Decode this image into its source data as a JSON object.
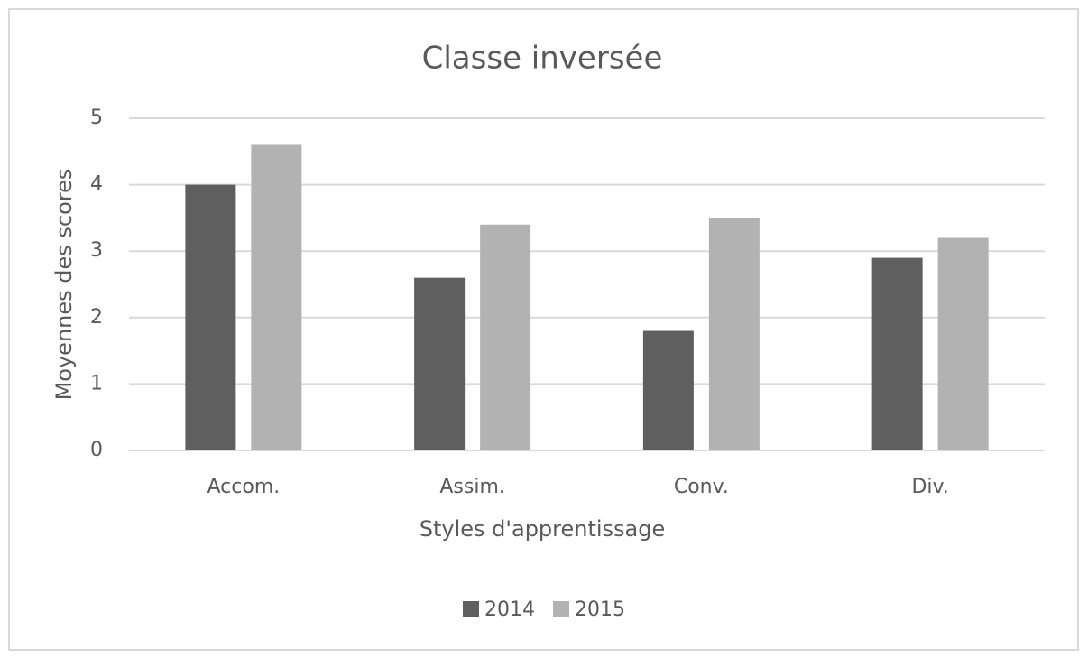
{
  "chart_data": {
    "type": "bar",
    "title": "Classe inversée",
    "x_label": "Styles d'apprentissage",
    "y_label": "Moyennes des scores",
    "categories": [
      "Accom.",
      "Assim.",
      "Conv.",
      "Div."
    ],
    "series": [
      {
        "name": "2014",
        "color": "#5f5f5f",
        "values": [
          4.0,
          2.6,
          1.8,
          2.9
        ]
      },
      {
        "name": "2015",
        "color": "#b2b2b2",
        "values": [
          4.6,
          3.4,
          3.5,
          3.2
        ]
      }
    ],
    "ylim": [
      0,
      5
    ],
    "yticks": [
      0,
      1,
      2,
      3,
      4,
      5
    ],
    "grid": true,
    "legend": "bottom"
  }
}
